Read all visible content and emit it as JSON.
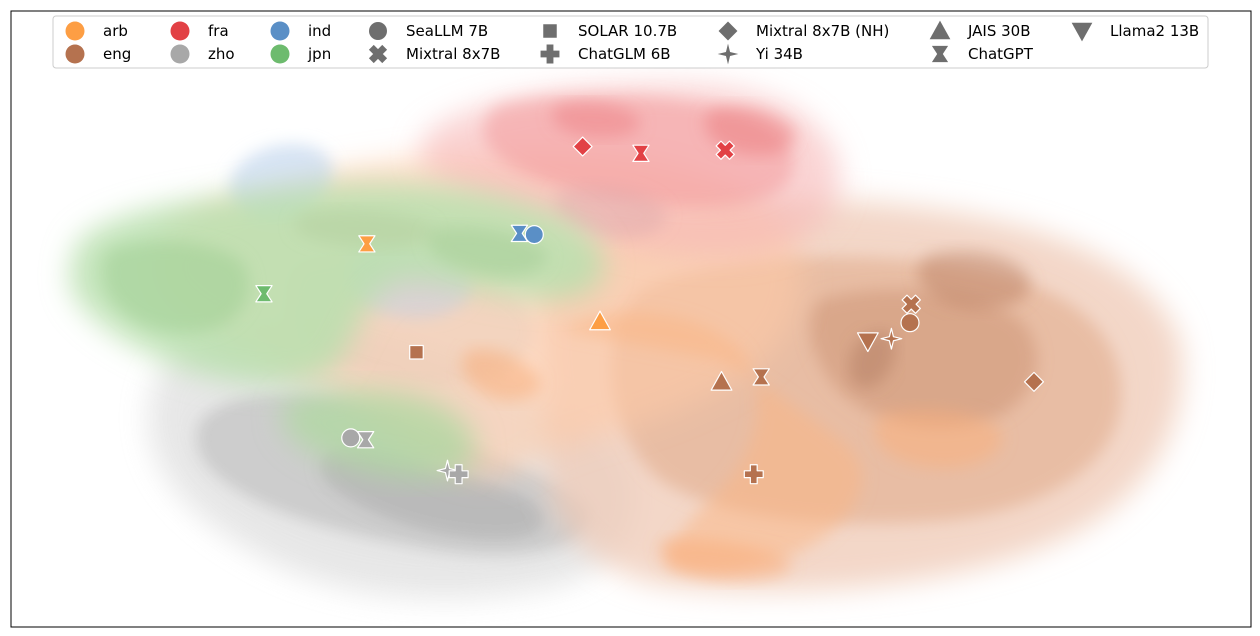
{
  "chart_data": {
    "type": "scatter",
    "title": "",
    "xlabel": "",
    "ylabel": "",
    "grid": false,
    "axes_ticks": false,
    "legend_position": "top",
    "xlim": [
      0,
      100
    ],
    "ylim": [
      0,
      100
    ],
    "languages": [
      {
        "code": "arb",
        "color": "#fd9e44"
      },
      {
        "code": "eng",
        "color": "#b5724f"
      },
      {
        "code": "fra",
        "color": "#e24145"
      },
      {
        "code": "zho",
        "color": "#a8a8a8"
      },
      {
        "code": "ind",
        "color": "#5a8fc6"
      },
      {
        "code": "jpn",
        "color": "#6dbb6e"
      }
    ],
    "models": [
      {
        "name": "SeaLLM 7B",
        "marker": "circle"
      },
      {
        "name": "Mixtral 8x7B",
        "marker": "x"
      },
      {
        "name": "SOLAR 10.7B",
        "marker": "square"
      },
      {
        "name": "ChatGLM 6B",
        "marker": "plus"
      },
      {
        "name": "Mixtral 8x7B (NH)",
        "marker": "diamond"
      },
      {
        "name": "Yi 34B",
        "marker": "star4"
      },
      {
        "name": "JAIS 30B",
        "marker": "triangle-up"
      },
      {
        "name": "ChatGPT",
        "marker": "hourglass"
      },
      {
        "name": "Llama2 13B",
        "marker": "triangle-down"
      }
    ],
    "points": [
      {
        "lang": "fra",
        "model": "Mixtral 8x7B (NH)",
        "x": 46.1,
        "y": 78.0
      },
      {
        "lang": "fra",
        "model": "ChatGPT",
        "x": 50.8,
        "y": 76.9
      },
      {
        "lang": "fra",
        "model": "Mixtral 8x7B",
        "x": 57.6,
        "y": 77.4
      },
      {
        "lang": "ind",
        "model": "ChatGPT",
        "x": 41.0,
        "y": 63.9
      },
      {
        "lang": "ind",
        "model": "SeaLLM 7B",
        "x": 42.2,
        "y": 63.7
      },
      {
        "lang": "arb",
        "model": "ChatGPT",
        "x": 28.7,
        "y": 62.2
      },
      {
        "lang": "jpn",
        "model": "ChatGPT",
        "x": 20.4,
        "y": 54.1
      },
      {
        "lang": "arb",
        "model": "JAIS 30B",
        "x": 47.5,
        "y": 49.6
      },
      {
        "lang": "eng",
        "model": "SOLAR 10.7B",
        "x": 32.7,
        "y": 44.6
      },
      {
        "lang": "eng",
        "model": "Mixtral 8x7B",
        "x": 72.6,
        "y": 52.4
      },
      {
        "lang": "eng",
        "model": "SeaLLM 7B",
        "x": 72.5,
        "y": 49.4
      },
      {
        "lang": "eng",
        "model": "Llama2 13B",
        "x": 69.1,
        "y": 46.4
      },
      {
        "lang": "eng",
        "model": "Yi 34B",
        "x": 71.0,
        "y": 46.8
      },
      {
        "lang": "eng",
        "model": "Mixtral 8x7B (NH)",
        "x": 82.5,
        "y": 39.8
      },
      {
        "lang": "eng",
        "model": "JAIS 30B",
        "x": 57.3,
        "y": 39.8
      },
      {
        "lang": "eng",
        "model": "ChatGPT",
        "x": 60.5,
        "y": 40.6
      },
      {
        "lang": "eng",
        "model": "ChatGLM 6B",
        "x": 59.9,
        "y": 24.8
      },
      {
        "lang": "zho",
        "model": "SeaLLM 7B",
        "x": 27.4,
        "y": 30.7
      },
      {
        "lang": "zho",
        "model": "ChatGPT",
        "x": 28.6,
        "y": 30.4
      },
      {
        "lang": "zho",
        "model": "Yi 34B",
        "x": 35.2,
        "y": 25.4
      },
      {
        "lang": "zho",
        "model": "ChatGLM 6B",
        "x": 36.1,
        "y": 24.8
      }
    ]
  }
}
